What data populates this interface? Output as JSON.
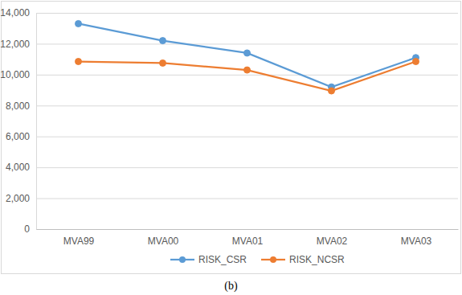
{
  "chart_data": {
    "type": "line",
    "subtitle": "(b)",
    "categories": [
      "MVA99",
      "MVA00",
      "MVA01",
      "MVA02",
      "MVA03"
    ],
    "series": [
      {
        "name": "RISK_CSR",
        "color": "#5b9bd5",
        "marker": "circle",
        "values": [
          13300,
          12200,
          11400,
          9200,
          11100
        ]
      },
      {
        "name": "RISK_NCSR",
        "color": "#ed7d31",
        "marker": "circle",
        "values": [
          10850,
          10750,
          10300,
          8950,
          10850
        ]
      }
    ],
    "ylim": [
      0,
      14000
    ],
    "yticks": [
      0,
      {
        "value": 2000,
        "label": "2,000"
      },
      {
        "value": 4000,
        "label": "4,000"
      },
      {
        "value": 6000,
        "label": "6,000"
      },
      {
        "value": 8000,
        "label": "8,000"
      },
      {
        "value": 10000,
        "label": "10,000"
      },
      {
        "value": 12000,
        "label": "12,000"
      },
      {
        "value": 14000,
        "label": "14,000"
      }
    ],
    "grid": true,
    "legend": "bottom"
  }
}
